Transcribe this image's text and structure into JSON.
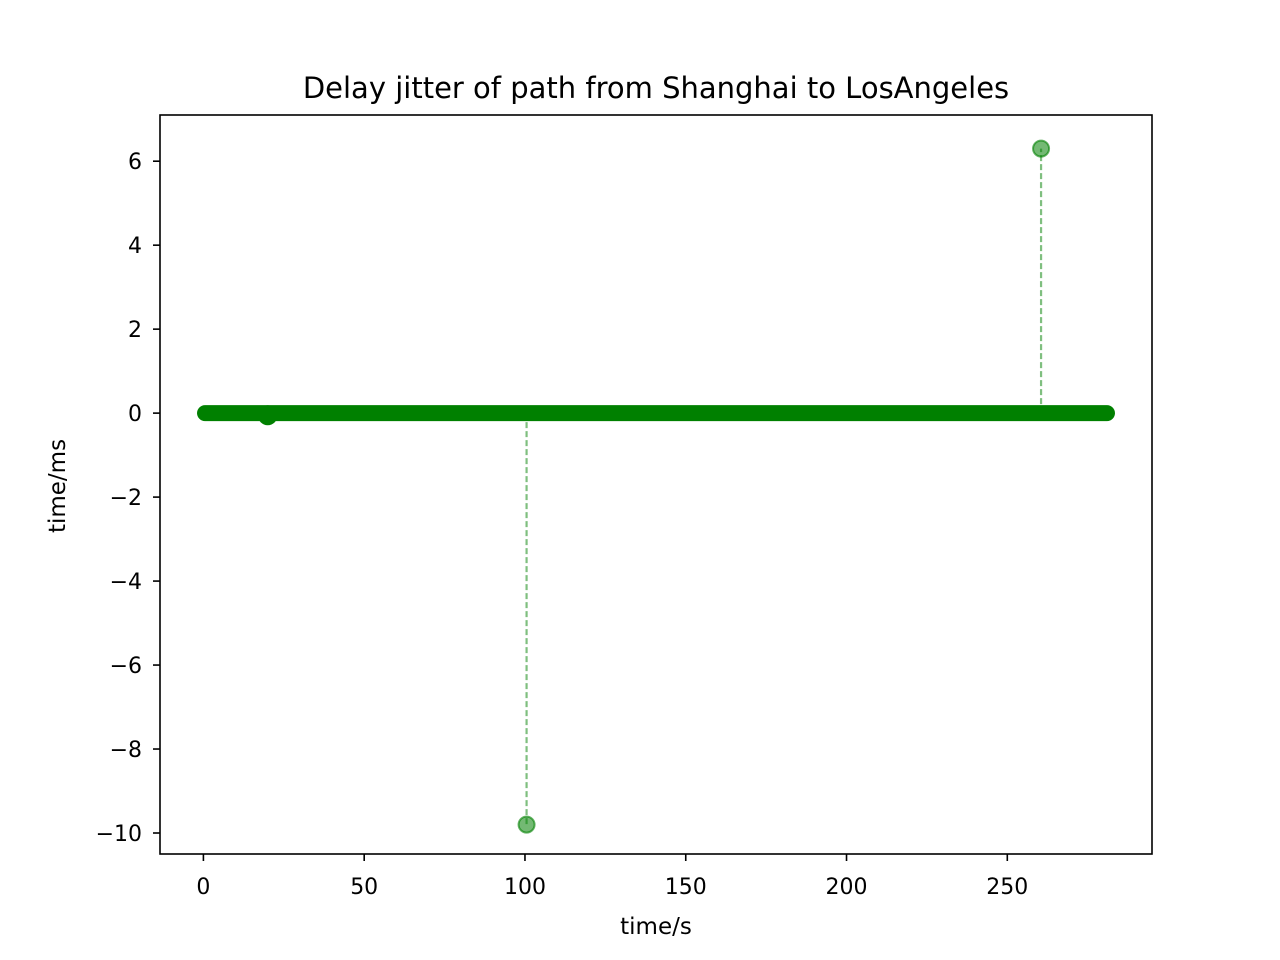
{
  "chart_data": {
    "type": "scatter",
    "title": "Delay jitter of path from Shanghai to LosAngeles",
    "xlabel": "time/s",
    "ylabel": "time/ms",
    "xlim": [
      -13.5,
      295
    ],
    "ylim": [
      -10.5,
      7.1
    ],
    "xticks": [
      0,
      50,
      100,
      150,
      200,
      250
    ],
    "xtick_labels": [
      "0",
      "50",
      "100",
      "150",
      "200",
      "250"
    ],
    "yticks": [
      -10,
      -8,
      -6,
      -4,
      -2,
      0,
      2,
      4,
      6
    ],
    "ytick_labels": [
      "−10",
      "−8",
      "−6",
      "−4",
      "−2",
      "0",
      "2",
      "4",
      "6"
    ],
    "grid": false,
    "colors": {
      "marker": "#008000",
      "stem": "#7fbf7f"
    },
    "baseline": {
      "x_start": 0.5,
      "x_end": 281,
      "y": 0
    },
    "bold_points": [
      {
        "x": 20,
        "y": -0.05
      }
    ],
    "spikes": [
      {
        "x": 100.5,
        "y": -9.8
      },
      {
        "x": 260.5,
        "y": 6.3
      }
    ]
  }
}
